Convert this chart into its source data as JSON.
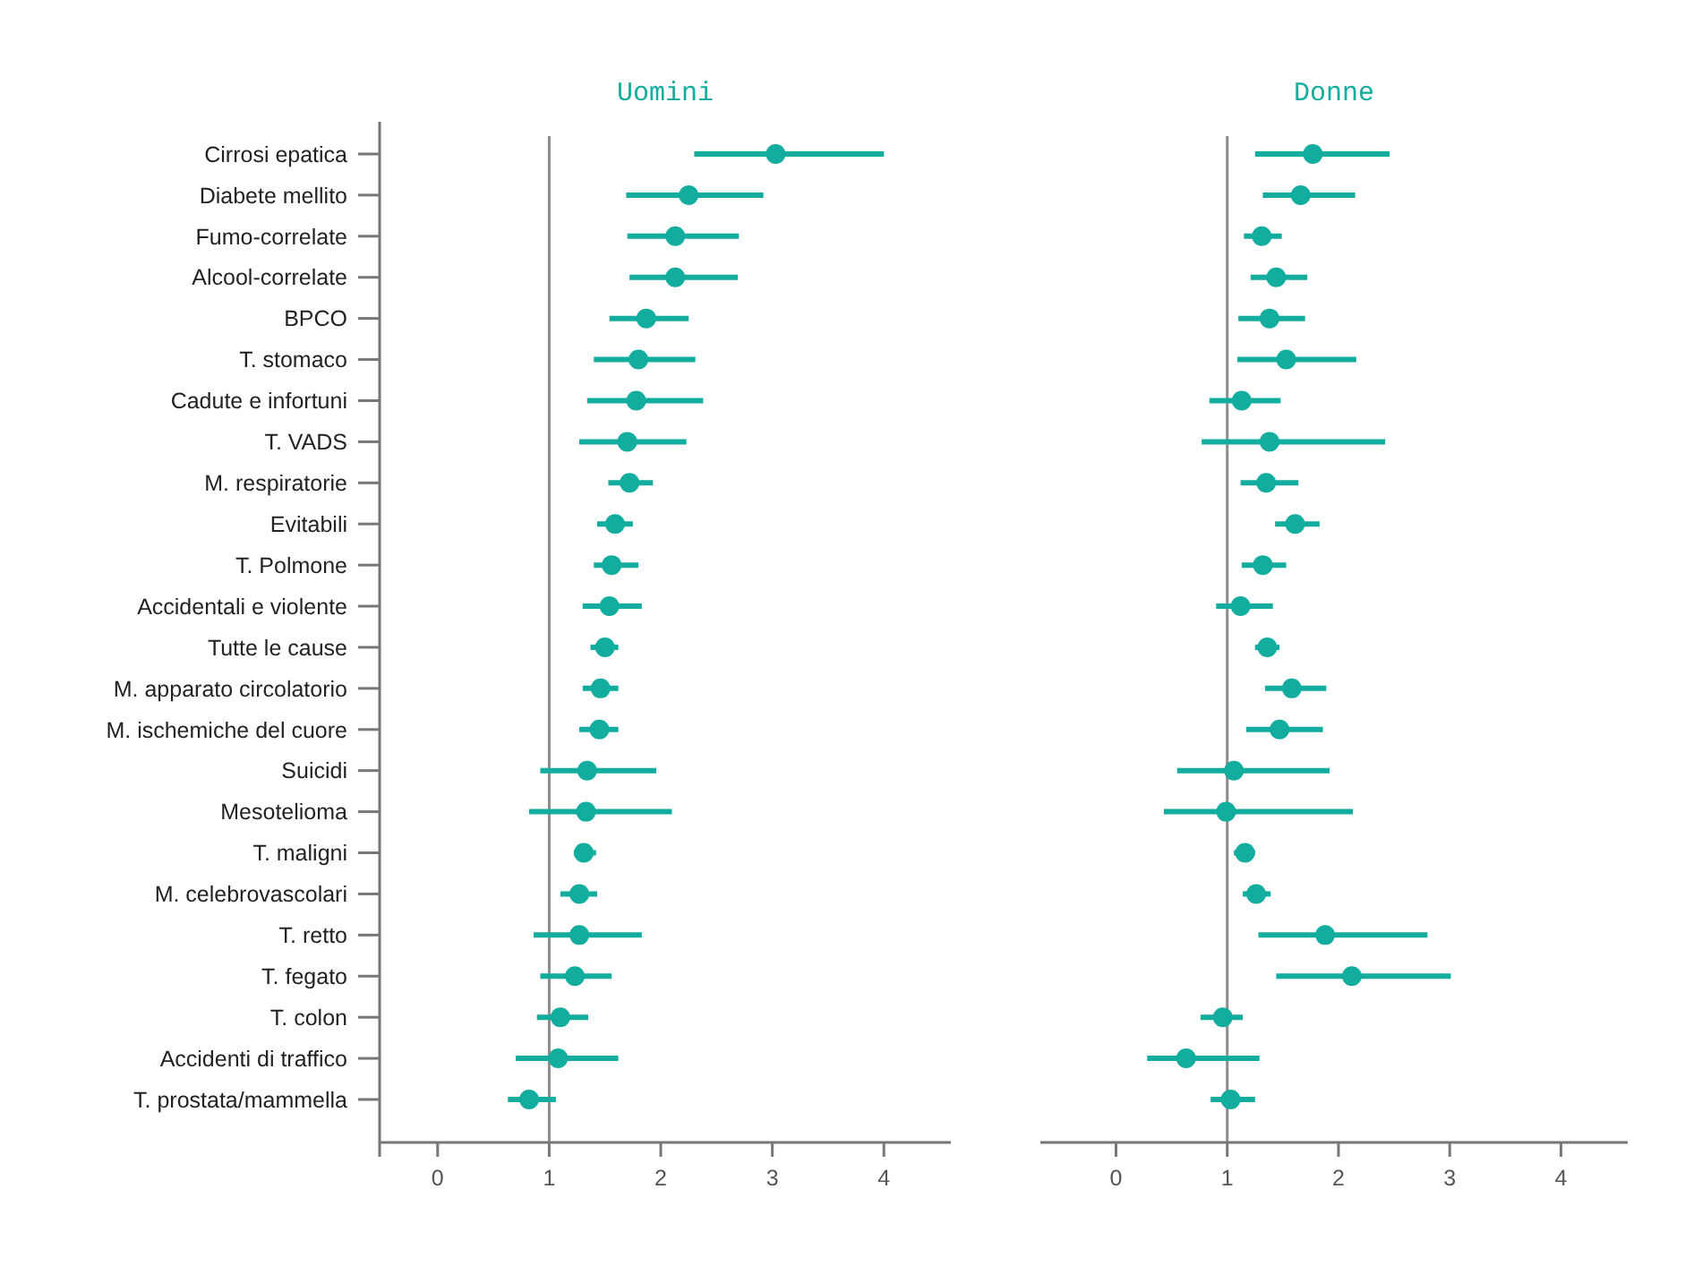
{
  "chart_data": [
    {
      "type": "scatter",
      "title": "Uomini",
      "orientation": "horizontal",
      "marker": "circle",
      "grid": false,
      "categories": [
        "Cirrosi epatica",
        "Diabete mellito",
        "Fumo-correlate",
        "Alcool-correlate",
        "BPCO",
        "T. stomaco",
        "Cadute e infortuni",
        "T. VADS",
        "M. respiratorie",
        "Evitabili",
        "T. Polmone",
        "Accidentali e violente",
        "Tutte le cause",
        "M. apparato circolatorio",
        "M. ischemiche del cuore",
        "Suicidi",
        "Mesotelioma",
        "T. maligni",
        "M. celebrovascolari",
        "T. retto",
        "T. fegato",
        "T. colon",
        "Accidenti di traffico",
        "T. prostata/mammella"
      ],
      "series": [
        {
          "color": "#12ad9e",
          "values": [
            3.03,
            2.25,
            2.13,
            2.13,
            1.87,
            1.8,
            1.78,
            1.7,
            1.72,
            1.59,
            1.56,
            1.54,
            1.5,
            1.46,
            1.45,
            1.34,
            1.33,
            1.31,
            1.27,
            1.27,
            1.23,
            1.1,
            1.08,
            0.82
          ],
          "errors": [
            [
              2.3,
              4.0
            ],
            [
              1.69,
              2.92
            ],
            [
              1.7,
              2.7
            ],
            [
              1.72,
              2.69
            ],
            [
              1.54,
              2.25
            ],
            [
              1.4,
              2.31
            ],
            [
              1.34,
              2.38
            ],
            [
              1.27,
              2.23
            ],
            [
              1.53,
              1.93
            ],
            [
              1.43,
              1.75
            ],
            [
              1.4,
              1.8
            ],
            [
              1.3,
              1.83
            ],
            [
              1.37,
              1.62
            ],
            [
              1.3,
              1.62
            ],
            [
              1.27,
              1.62
            ],
            [
              0.92,
              1.96
            ],
            [
              0.82,
              2.1
            ],
            [
              1.22,
              1.42
            ],
            [
              1.1,
              1.43
            ],
            [
              0.86,
              1.83
            ],
            [
              0.92,
              1.56
            ],
            [
              0.89,
              1.35
            ],
            [
              0.7,
              1.62
            ],
            [
              0.63,
              1.06
            ]
          ]
        }
      ],
      "xlim": [
        -0.52,
        4.6
      ],
      "xticks": [
        0,
        1,
        2,
        3,
        4
      ],
      "ref_lines": [
        {
          "axis": "x",
          "value": 1,
          "color": "#8c8c8c"
        }
      ]
    },
    {
      "type": "scatter",
      "title": "Donne",
      "orientation": "horizontal",
      "marker": "circle",
      "grid": false,
      "tick_labels": "x",
      "categories": [
        null,
        null,
        null,
        null,
        null,
        null,
        null,
        null,
        null,
        null,
        null,
        null,
        null,
        null,
        null,
        null,
        null,
        null,
        null,
        null,
        null,
        null,
        null,
        null
      ],
      "series": [
        {
          "color": "#12ad9e",
          "values": [
            1.77,
            1.66,
            1.31,
            1.44,
            1.38,
            1.53,
            1.13,
            1.38,
            1.35,
            1.61,
            1.32,
            1.12,
            1.36,
            1.58,
            1.47,
            1.06,
            0.99,
            1.16,
            1.26,
            1.88,
            2.12,
            0.96,
            0.63,
            1.03
          ],
          "errors": [
            [
              1.25,
              2.46
            ],
            [
              1.32,
              2.15
            ],
            [
              1.15,
              1.49
            ],
            [
              1.21,
              1.72
            ],
            [
              1.1,
              1.7
            ],
            [
              1.09,
              2.16
            ],
            [
              0.84,
              1.48
            ],
            [
              0.77,
              2.42
            ],
            [
              1.12,
              1.64
            ],
            [
              1.43,
              1.83
            ],
            [
              1.13,
              1.53
            ],
            [
              0.9,
              1.41
            ],
            [
              1.25,
              1.47
            ],
            [
              1.34,
              1.89
            ],
            [
              1.17,
              1.86
            ],
            [
              0.55,
              1.92
            ],
            [
              0.43,
              2.13
            ],
            [
              1.06,
              1.25
            ],
            [
              1.14,
              1.39
            ],
            [
              1.28,
              2.8
            ],
            [
              1.44,
              3.01
            ],
            [
              0.76,
              1.14
            ],
            [
              0.28,
              1.29
            ],
            [
              0.85,
              1.25
            ]
          ]
        }
      ],
      "xlim": [
        -0.68,
        4.6
      ],
      "xticks": [
        0,
        1,
        2,
        3,
        4
      ],
      "ref_lines": [
        {
          "axis": "x",
          "value": 1,
          "color": "#8c8c8c"
        }
      ]
    }
  ]
}
